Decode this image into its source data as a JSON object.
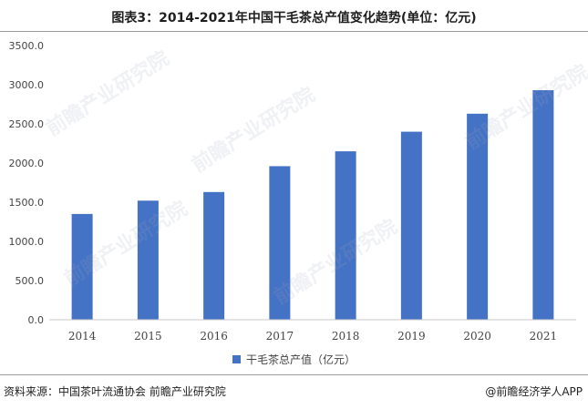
{
  "title": "图表3：2014-2021年中国干毛茶总产值变化趋势(单位：亿元)",
  "source": "资料来源：中国茶叶流通协会 前瞻产业研究院",
  "brand": "@前瞻经济学人APP",
  "watermark": "前瞻产业研究院",
  "colors": {
    "bar": "#4472C4",
    "axis": "#c8c8c8",
    "text": "#444444"
  },
  "chart_data": {
    "type": "bar",
    "categories": [
      "2014",
      "2015",
      "2016",
      "2017",
      "2018",
      "2019",
      "2020",
      "2021"
    ],
    "series": [
      {
        "name": "干毛茶总产值（亿元）",
        "values": [
          1350,
          1520,
          1630,
          1960,
          2150,
          2400,
          2630,
          2930
        ]
      }
    ],
    "ylim": [
      0,
      3500
    ],
    "yticks": [
      "0.0",
      "500.0",
      "1000.0",
      "1500.0",
      "2000.0",
      "2500.0",
      "3000.0",
      "3500.0"
    ],
    "grid": false,
    "legend_position": "bottom"
  }
}
